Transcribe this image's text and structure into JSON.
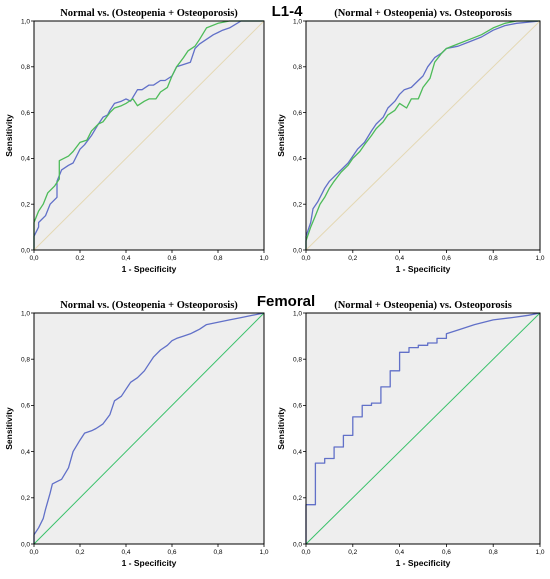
{
  "section_labels": {
    "top": "L1-4",
    "bottom": "Femoral"
  },
  "colors": {
    "plot_bg": "#eeeeee",
    "frame": "#000000",
    "series_blue": "#6170c8",
    "series_green": "#4dbb59",
    "reference_beige": "#e4d8b4",
    "reference_green": "#39c16a"
  },
  "chart_data": [
    {
      "type": "line",
      "title": "Normal vs. (Osteopenia + Osteoporosis)",
      "xlabel": "1 - Specificity",
      "ylabel": "Sensitivity",
      "xlim": [
        0,
        1
      ],
      "ylim": [
        0,
        1
      ],
      "xticks": [
        "0,0",
        "0,2",
        "0,4",
        "0,6",
        "0,8",
        "1,0"
      ],
      "yticks": [
        "0,0",
        "0,2",
        "0,4",
        "0,6",
        "0,8",
        "1,0"
      ],
      "grid": false,
      "series": [
        {
          "color": "#6170c8",
          "x": [
            0,
            0,
            0.02,
            0.02,
            0.05,
            0.07,
            0.1,
            0.1,
            0.12,
            0.15,
            0.17,
            0.2,
            0.22,
            0.25,
            0.28,
            0.3,
            0.32,
            0.33,
            0.35,
            0.38,
            0.4,
            0.42,
            0.45,
            0.47,
            0.5,
            0.52,
            0.55,
            0.57,
            0.6,
            0.62,
            0.65,
            0.68,
            0.7,
            0.72,
            0.75,
            0.78,
            0.8,
            0.82,
            0.85,
            0.9,
            1
          ],
          "y": [
            0,
            0.06,
            0.1,
            0.12,
            0.15,
            0.2,
            0.23,
            0.3,
            0.35,
            0.37,
            0.38,
            0.44,
            0.46,
            0.5,
            0.55,
            0.58,
            0.59,
            0.61,
            0.64,
            0.65,
            0.66,
            0.65,
            0.7,
            0.7,
            0.72,
            0.72,
            0.74,
            0.74,
            0.76,
            0.8,
            0.81,
            0.82,
            0.88,
            0.9,
            0.92,
            0.94,
            0.95,
            0.96,
            0.97,
            1,
            1
          ]
        },
        {
          "color": "#4dbb59",
          "x": [
            0,
            0,
            0.02,
            0.04,
            0.06,
            0.09,
            0.11,
            0.11,
            0.15,
            0.17,
            0.2,
            0.23,
            0.25,
            0.28,
            0.3,
            0.33,
            0.35,
            0.38,
            0.4,
            0.43,
            0.45,
            0.48,
            0.5,
            0.53,
            0.55,
            0.58,
            0.6,
            0.62,
            0.65,
            0.67,
            0.7,
            0.72,
            0.75,
            0.8,
            0.85,
            0.9,
            1
          ],
          "y": [
            0,
            0.12,
            0.17,
            0.2,
            0.25,
            0.28,
            0.31,
            0.39,
            0.41,
            0.43,
            0.47,
            0.48,
            0.52,
            0.55,
            0.56,
            0.6,
            0.62,
            0.63,
            0.64,
            0.66,
            0.63,
            0.65,
            0.66,
            0.66,
            0.69,
            0.71,
            0.76,
            0.8,
            0.84,
            0.87,
            0.89,
            0.92,
            0.97,
            0.99,
            1,
            1,
            1
          ]
        },
        {
          "color": "#e4d8b4",
          "x": [
            0,
            1
          ],
          "y": [
            0,
            1
          ]
        }
      ]
    },
    {
      "type": "line",
      "title": "(Normal + Osteopenia) vs. Osteoporosis",
      "xlabel": "1 - Specificity",
      "ylabel": "Sensitivity",
      "xlim": [
        0,
        1
      ],
      "ylim": [
        0,
        1
      ],
      "xticks": [
        "0,0",
        "0,2",
        "0,4",
        "0,6",
        "0,8",
        "1,0"
      ],
      "yticks": [
        "0,0",
        "0,2",
        "0,4",
        "0,6",
        "0,8",
        "1,0"
      ],
      "grid": false,
      "series": [
        {
          "color": "#6170c8",
          "x": [
            0,
            0,
            0.02,
            0.03,
            0.05,
            0.07,
            0.08,
            0.1,
            0.12,
            0.15,
            0.18,
            0.2,
            0.22,
            0.25,
            0.28,
            0.3,
            0.33,
            0.35,
            0.38,
            0.4,
            0.42,
            0.45,
            0.48,
            0.5,
            0.52,
            0.55,
            0.58,
            0.6,
            0.65,
            0.7,
            0.75,
            0.8,
            0.85,
            0.9,
            1
          ],
          "y": [
            0,
            0.06,
            0.12,
            0.18,
            0.21,
            0.25,
            0.27,
            0.3,
            0.32,
            0.35,
            0.38,
            0.41,
            0.44,
            0.47,
            0.52,
            0.55,
            0.58,
            0.62,
            0.65,
            0.68,
            0.7,
            0.71,
            0.74,
            0.76,
            0.8,
            0.84,
            0.86,
            0.88,
            0.89,
            0.91,
            0.93,
            0.96,
            0.98,
            0.99,
            1
          ]
        },
        {
          "color": "#4dbb59",
          "x": [
            0,
            0,
            0.02,
            0.04,
            0.06,
            0.08,
            0.1,
            0.12,
            0.15,
            0.18,
            0.2,
            0.23,
            0.25,
            0.28,
            0.3,
            0.33,
            0.35,
            0.38,
            0.4,
            0.43,
            0.45,
            0.48,
            0.5,
            0.53,
            0.55,
            0.58,
            0.6,
            0.65,
            0.7,
            0.75,
            0.8,
            0.85,
            0.9,
            1
          ],
          "y": [
            0,
            0.04,
            0.1,
            0.15,
            0.2,
            0.23,
            0.27,
            0.3,
            0.34,
            0.37,
            0.4,
            0.43,
            0.46,
            0.5,
            0.53,
            0.56,
            0.59,
            0.61,
            0.64,
            0.62,
            0.66,
            0.66,
            0.71,
            0.75,
            0.82,
            0.86,
            0.88,
            0.9,
            0.92,
            0.94,
            0.97,
            0.99,
            1,
            1
          ]
        },
        {
          "color": "#e4d8b4",
          "x": [
            0,
            1
          ],
          "y": [
            0,
            1
          ]
        }
      ]
    },
    {
      "type": "line",
      "title": "Normal vs. (Osteopenia + Osteoporosis)",
      "xlabel": "1 - Specificity",
      "ylabel": "Sensitivity",
      "xlim": [
        0,
        1
      ],
      "ylim": [
        0,
        1
      ],
      "xticks": [
        "0,0",
        "0,2",
        "0,4",
        "0,6",
        "0,8",
        "1,0"
      ],
      "yticks": [
        "0,0",
        "0,2",
        "0,4",
        "0,6",
        "0,8",
        "1,0"
      ],
      "grid": false,
      "series": [
        {
          "color": "#6170c8",
          "x": [
            0,
            0,
            0.02,
            0.04,
            0.05,
            0.07,
            0.08,
            0.1,
            0.12,
            0.15,
            0.17,
            0.2,
            0.22,
            0.25,
            0.27,
            0.3,
            0.33,
            0.35,
            0.38,
            0.4,
            0.42,
            0.45,
            0.48,
            0.5,
            0.52,
            0.55,
            0.58,
            0.6,
            0.62,
            0.65,
            0.68,
            0.7,
            0.72,
            0.75,
            0.8,
            0.85,
            0.9,
            0.95,
            1
          ],
          "y": [
            0,
            0.04,
            0.07,
            0.11,
            0.15,
            0.22,
            0.26,
            0.27,
            0.28,
            0.33,
            0.4,
            0.45,
            0.48,
            0.49,
            0.5,
            0.52,
            0.56,
            0.62,
            0.64,
            0.67,
            0.7,
            0.72,
            0.75,
            0.78,
            0.81,
            0.84,
            0.86,
            0.88,
            0.89,
            0.9,
            0.91,
            0.92,
            0.93,
            0.95,
            0.96,
            0.97,
            0.98,
            0.99,
            1
          ]
        },
        {
          "color": "#39c16a",
          "x": [
            0,
            1
          ],
          "y": [
            0,
            1
          ]
        }
      ]
    },
    {
      "type": "line",
      "title": "(Normal + Osteopenia) vs. Osteoporosis",
      "xlabel": "1 - Specificity",
      "ylabel": "Sensitivity",
      "xlim": [
        0,
        1
      ],
      "ylim": [
        0,
        1
      ],
      "xticks": [
        "0,0",
        "0,2",
        "0,4",
        "0,6",
        "0,8",
        "1,0"
      ],
      "yticks": [
        "0,0",
        "0,2",
        "0,4",
        "0,6",
        "0,8",
        "1,0"
      ],
      "grid": false,
      "series": [
        {
          "color": "#6170c8",
          "x": [
            0,
            0,
            0.04,
            0.04,
            0.08,
            0.08,
            0.12,
            0.12,
            0.16,
            0.16,
            0.2,
            0.2,
            0.24,
            0.24,
            0.28,
            0.28,
            0.32,
            0.32,
            0.36,
            0.36,
            0.4,
            0.4,
            0.44,
            0.44,
            0.48,
            0.48,
            0.52,
            0.52,
            0.56,
            0.56,
            0.6,
            0.6,
            0.66,
            0.72,
            0.8,
            0.88,
            0.95,
            1
          ],
          "y": [
            0,
            0.17,
            0.17,
            0.35,
            0.35,
            0.37,
            0.37,
            0.42,
            0.42,
            0.47,
            0.47,
            0.55,
            0.55,
            0.6,
            0.6,
            0.61,
            0.61,
            0.68,
            0.68,
            0.75,
            0.75,
            0.83,
            0.83,
            0.85,
            0.85,
            0.86,
            0.86,
            0.87,
            0.87,
            0.89,
            0.89,
            0.91,
            0.93,
            0.95,
            0.97,
            0.98,
            0.99,
            1
          ]
        },
        {
          "color": "#39c16a",
          "x": [
            0,
            1
          ],
          "y": [
            0,
            1
          ]
        }
      ]
    }
  ]
}
